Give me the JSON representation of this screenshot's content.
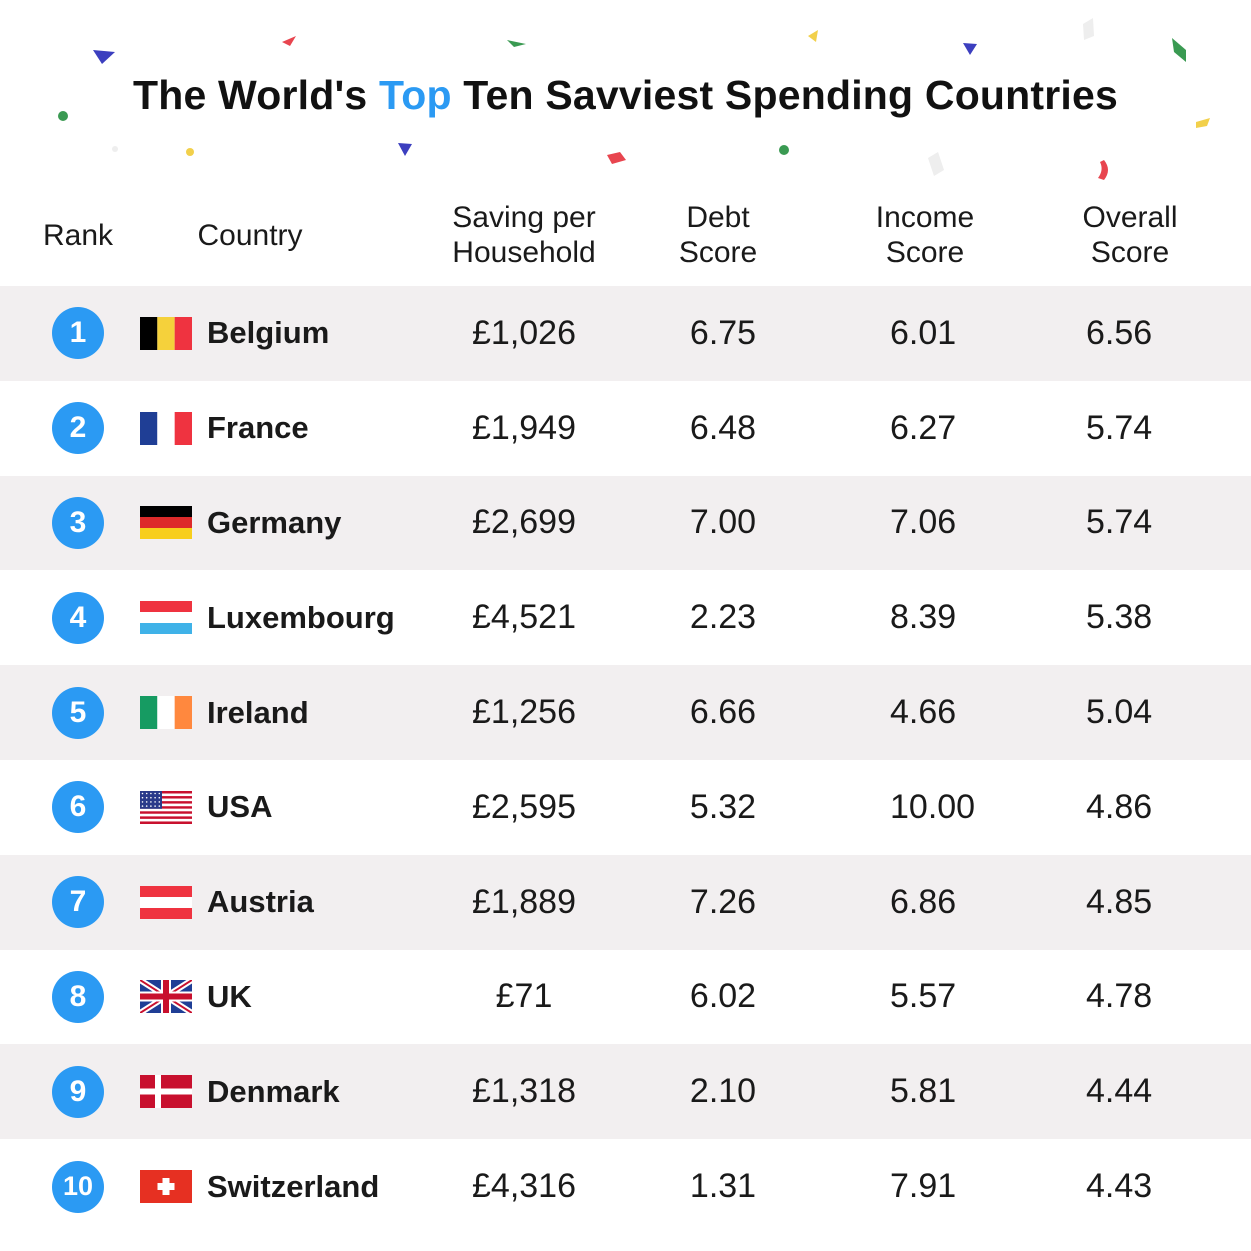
{
  "title": {
    "part1": "The World's ",
    "accent": "Top",
    "part2": " Ten Savviest Spending Countries"
  },
  "colors": {
    "accent": "#2b9af3",
    "row_shade": "#f2eff0",
    "confetti": [
      "#3c3fbf",
      "#f2d04b",
      "#e8454f",
      "#3a9a52",
      "#e8e8e8"
    ]
  },
  "chart_data": {
    "type": "table",
    "columns": [
      "Rank",
      "Country",
      "Saving per Household",
      "Debt Score",
      "Income Score",
      "Overall Score"
    ],
    "header": {
      "rank": "Rank",
      "country": "Country",
      "saving_l1": "Saving per",
      "saving_l2": "Household",
      "debt_l1": "Debt",
      "debt_l2": "Score",
      "income_l1": "Income",
      "income_l2": "Score",
      "overall_l1": "Overall",
      "overall_l2": "Score"
    },
    "rows": [
      {
        "rank": "1",
        "country": "Belgium",
        "flag": "belgium",
        "saving": "£1,026",
        "debt": "6.75",
        "income": "6.01",
        "overall": "6.56"
      },
      {
        "rank": "2",
        "country": "France",
        "flag": "france",
        "saving": "£1,949",
        "debt": "6.48",
        "income": "6.27",
        "overall": "5.74"
      },
      {
        "rank": "3",
        "country": "Germany",
        "flag": "germany",
        "saving": "£2,699",
        "debt": "7.00",
        "income": "7.06",
        "overall": "5.74"
      },
      {
        "rank": "4",
        "country": "Luxembourg",
        "flag": "luxembourg",
        "saving": "£4,521",
        "debt": "2.23",
        "income": "8.39",
        "overall": "5.38"
      },
      {
        "rank": "5",
        "country": "Ireland",
        "flag": "ireland",
        "saving": "£1,256",
        "debt": "6.66",
        "income": "4.66",
        "overall": "5.04"
      },
      {
        "rank": "6",
        "country": "USA",
        "flag": "usa",
        "saving": "£2,595",
        "debt": "5.32",
        "income": "10.00",
        "overall": "4.86"
      },
      {
        "rank": "7",
        "country": "Austria",
        "flag": "austria",
        "saving": "£1,889",
        "debt": "7.26",
        "income": "6.86",
        "overall": "4.85"
      },
      {
        "rank": "8",
        "country": "UK",
        "flag": "uk",
        "saving": "£71",
        "debt": "6.02",
        "income": "5.57",
        "overall": "4.78"
      },
      {
        "rank": "9",
        "country": "Denmark",
        "flag": "denmark",
        "saving": "£1,318",
        "debt": "2.10",
        "income": "5.81",
        "overall": "4.44"
      },
      {
        "rank": "10",
        "country": "Switzerland",
        "flag": "switzerland",
        "saving": "£4,316",
        "debt": "1.31",
        "income": "7.91",
        "overall": "4.43"
      }
    ]
  }
}
